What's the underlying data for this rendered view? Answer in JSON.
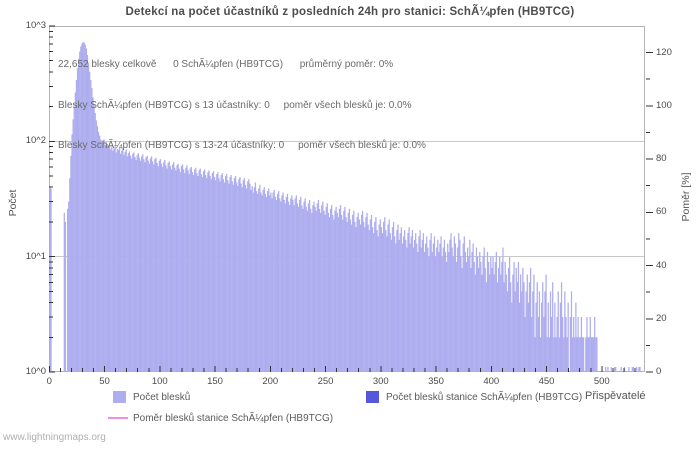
{
  "title": "Detekcí na počet účastníků z posledních 24h pro stanici: SchÃ¼pfen (HB9TCG)",
  "watermark": "www.lightningmaps.org",
  "annotations": {
    "line1": "22,652 blesky celkově      0 SchÃ¼pfen (HB9TCG)      průměrný poměr: 0%",
    "line2": "Blesky SchÃ¼pfen (HB9TCG) s 13 účastníky: 0     poměr všech blesků je: 0.0%",
    "line3": "Blesky SchÃ¼pfen (HB9TCG) s 13-24 účastníky: 0     poměr všech blesků je: 0.0%"
  },
  "axes": {
    "y_left": {
      "label": "Počet",
      "tick_labels": [
        "10^3",
        "10^2",
        "10^1",
        "10^0"
      ]
    },
    "y_right": {
      "label": "Poměr [%]",
      "tick_labels": [
        120,
        100,
        80,
        60,
        40,
        20,
        0
      ]
    },
    "x": {
      "label": "Přispěvatelé",
      "tick_labels": [
        0,
        50,
        100,
        150,
        200,
        250,
        300,
        350,
        400,
        450,
        500
      ]
    }
  },
  "legend": [
    {
      "type": "box",
      "color": "#adadef",
      "label": "Počet blesků"
    },
    {
      "type": "box",
      "color": "#5757dd",
      "label": "Počet blesků stanice SchÃ¼pfen (HB9TCG)"
    },
    {
      "type": "line",
      "color": "#ee8dee",
      "label": "Poměr blesků stanice SchÃ¼pfen (HB9TCG)"
    }
  ],
  "colors": {
    "bar": "#adadef",
    "grid": "#c9c9c9",
    "border": "#b3b3b3",
    "tick": "#333333"
  },
  "chart_data": {
    "type": "bar",
    "title": "Detekcí na počet účastníků z posledních 24h pro stanici: SchÃ¼pfen (HB9TCG)",
    "xlabel": "Přispěvatelé",
    "ylabel": "Počet",
    "ylabel_right": "Poměr [%]",
    "x_axis": {
      "min": 0,
      "max": 539,
      "major_tick_step": 50,
      "minor_tick_step": 10
    },
    "y_axis_left": {
      "scale": "log10",
      "min": 1,
      "max": 1000,
      "tick_labels": [
        "10^0",
        "10^1",
        "10^2",
        "10^3"
      ]
    },
    "y_axis_right": {
      "min": 0,
      "max": 130,
      "major_tick_step": 20,
      "minor_tick_step": 10
    },
    "grid": "horizontal decade lines at 10^1 and 10^2",
    "legend_position": "bottom",
    "series": [
      {
        "name": "Počet blesků",
        "type": "bar",
        "color": "#adadef",
        "x_is_participant_count": true,
        "values": [
          41,
          39,
          0,
          0,
          0,
          0,
          0,
          0,
          0,
          0,
          0,
          0,
          0,
          24,
          20,
          0,
          26,
          30,
          48,
          75,
          115,
          155,
          200,
          265,
          340,
          430,
          520,
          600,
          665,
          705,
          725,
          715,
          690,
          640,
          560,
          480,
          400,
          340,
          290,
          240,
          205,
          176,
          152,
          136,
          121,
          112,
          104,
          100,
          96,
          104,
          93,
          98,
          95,
          88,
          92,
          85,
          90,
          83,
          87,
          91,
          80,
          86,
          84,
          89,
          78,
          83,
          87,
          76,
          81,
          85,
          74,
          79,
          82,
          75,
          71,
          78,
          80,
          73,
          69,
          76,
          79,
          72,
          68,
          74,
          77,
          70,
          66,
          73,
          75,
          68,
          64,
          71,
          74,
          67,
          63,
          70,
          72,
          65,
          61,
          68,
          70,
          64,
          60,
          66,
          69,
          62,
          58,
          65,
          67,
          61,
          57,
          63,
          66,
          59,
          56,
          62,
          64,
          58,
          54,
          61,
          63,
          57,
          53,
          59,
          62,
          56,
          52,
          58,
          60,
          54,
          51,
          57,
          59,
          53,
          50,
          56,
          58,
          52,
          49,
          55,
          57,
          51,
          48,
          54,
          56,
          50,
          47,
          53,
          55,
          49,
          46,
          52,
          54,
          48,
          45,
          51,
          53,
          47,
          44,
          50,
          52,
          46,
          43,
          49,
          51,
          45,
          42,
          48,
          50,
          44,
          41,
          47,
          49,
          43,
          40,
          46,
          48,
          42,
          39,
          45,
          47,
          43,
          38,
          41,
          36,
          40,
          44,
          37,
          35,
          39,
          42,
          36,
          34,
          38,
          40,
          35,
          33,
          37,
          39,
          34,
          36,
          32,
          36,
          38,
          33,
          31,
          35,
          37,
          32,
          30,
          34,
          36,
          31,
          29,
          33,
          35,
          30,
          28,
          32,
          34,
          31,
          28,
          32,
          34,
          29,
          27,
          31,
          33,
          28,
          26,
          30,
          32,
          27,
          25,
          29,
          31,
          26,
          24,
          28,
          30,
          27,
          25,
          29,
          31,
          26,
          24,
          28,
          30,
          25,
          23,
          27,
          29,
          24,
          22,
          26,
          28,
          23,
          21,
          25,
          27,
          24,
          22,
          26,
          28,
          23,
          21,
          25,
          27,
          22,
          20,
          24,
          26,
          21,
          19,
          23,
          25,
          20,
          18,
          22,
          24,
          21,
          19,
          23,
          25,
          20,
          18,
          22,
          24,
          19,
          17,
          21,
          23,
          18,
          16,
          20,
          22,
          17,
          15,
          19,
          21,
          18,
          16,
          20,
          22,
          17,
          15,
          19,
          21,
          16,
          14,
          18,
          20,
          15,
          13,
          17,
          19,
          14,
          16,
          18,
          13,
          15,
          17,
          14,
          12,
          16,
          18,
          13,
          15,
          17,
          12,
          14,
          16,
          13,
          11,
          15,
          17,
          12,
          14,
          16,
          11,
          13,
          15,
          12,
          10,
          14,
          16,
          11,
          13,
          15,
          10,
          12,
          14,
          11,
          13,
          15,
          10,
          12,
          14,
          11,
          9,
          13,
          11,
          14,
          16,
          12,
          10,
          15,
          13,
          9,
          12,
          16,
          14,
          10,
          8,
          13,
          15,
          11,
          9,
          12,
          10,
          14,
          8,
          11,
          13,
          9,
          7,
          12,
          10,
          8,
          11,
          9,
          7,
          10,
          12,
          8,
          6,
          11,
          9,
          7,
          10,
          8,
          10,
          7,
          9,
          11,
          6,
          8,
          10,
          7,
          9,
          12,
          6,
          9,
          7,
          5,
          8,
          10,
          6,
          4,
          7,
          9,
          5,
          8,
          6,
          9,
          4,
          7,
          5,
          8,
          6,
          3,
          5,
          7,
          4,
          6,
          8,
          3,
          5,
          7,
          2,
          4,
          6,
          3,
          5,
          2,
          4,
          6,
          3,
          5,
          7,
          2,
          4,
          2,
          5,
          3,
          6,
          2,
          4,
          2,
          3,
          5,
          2,
          4,
          6,
          3,
          2,
          5,
          3,
          2,
          4,
          0,
          3,
          5,
          2,
          3,
          2,
          4,
          2,
          3,
          2,
          2,
          3,
          2,
          2,
          0,
          2,
          3,
          2,
          2,
          3,
          2,
          2,
          2,
          3,
          2,
          2,
          0,
          0,
          0,
          0,
          0,
          0,
          0,
          1,
          0,
          1,
          0,
          0,
          1,
          0,
          0,
          1,
          1,
          0,
          0,
          0,
          0,
          1,
          0,
          0,
          1,
          0,
          0,
          0,
          1,
          0,
          0,
          1,
          1,
          0,
          0,
          1,
          0,
          1,
          1,
          0,
          0,
          0,
          0,
          0
        ]
      },
      {
        "name": "Počet blesků stanice SchÃ¼pfen (HB9TCG)",
        "type": "bar",
        "color": "#5757dd",
        "values_constant": 0
      },
      {
        "name": "Poměr blesků stanice SchÃ¼pfen (HB9TCG)",
        "type": "line",
        "color": "#ee8dee",
        "values_constant": 0
      }
    ]
  }
}
